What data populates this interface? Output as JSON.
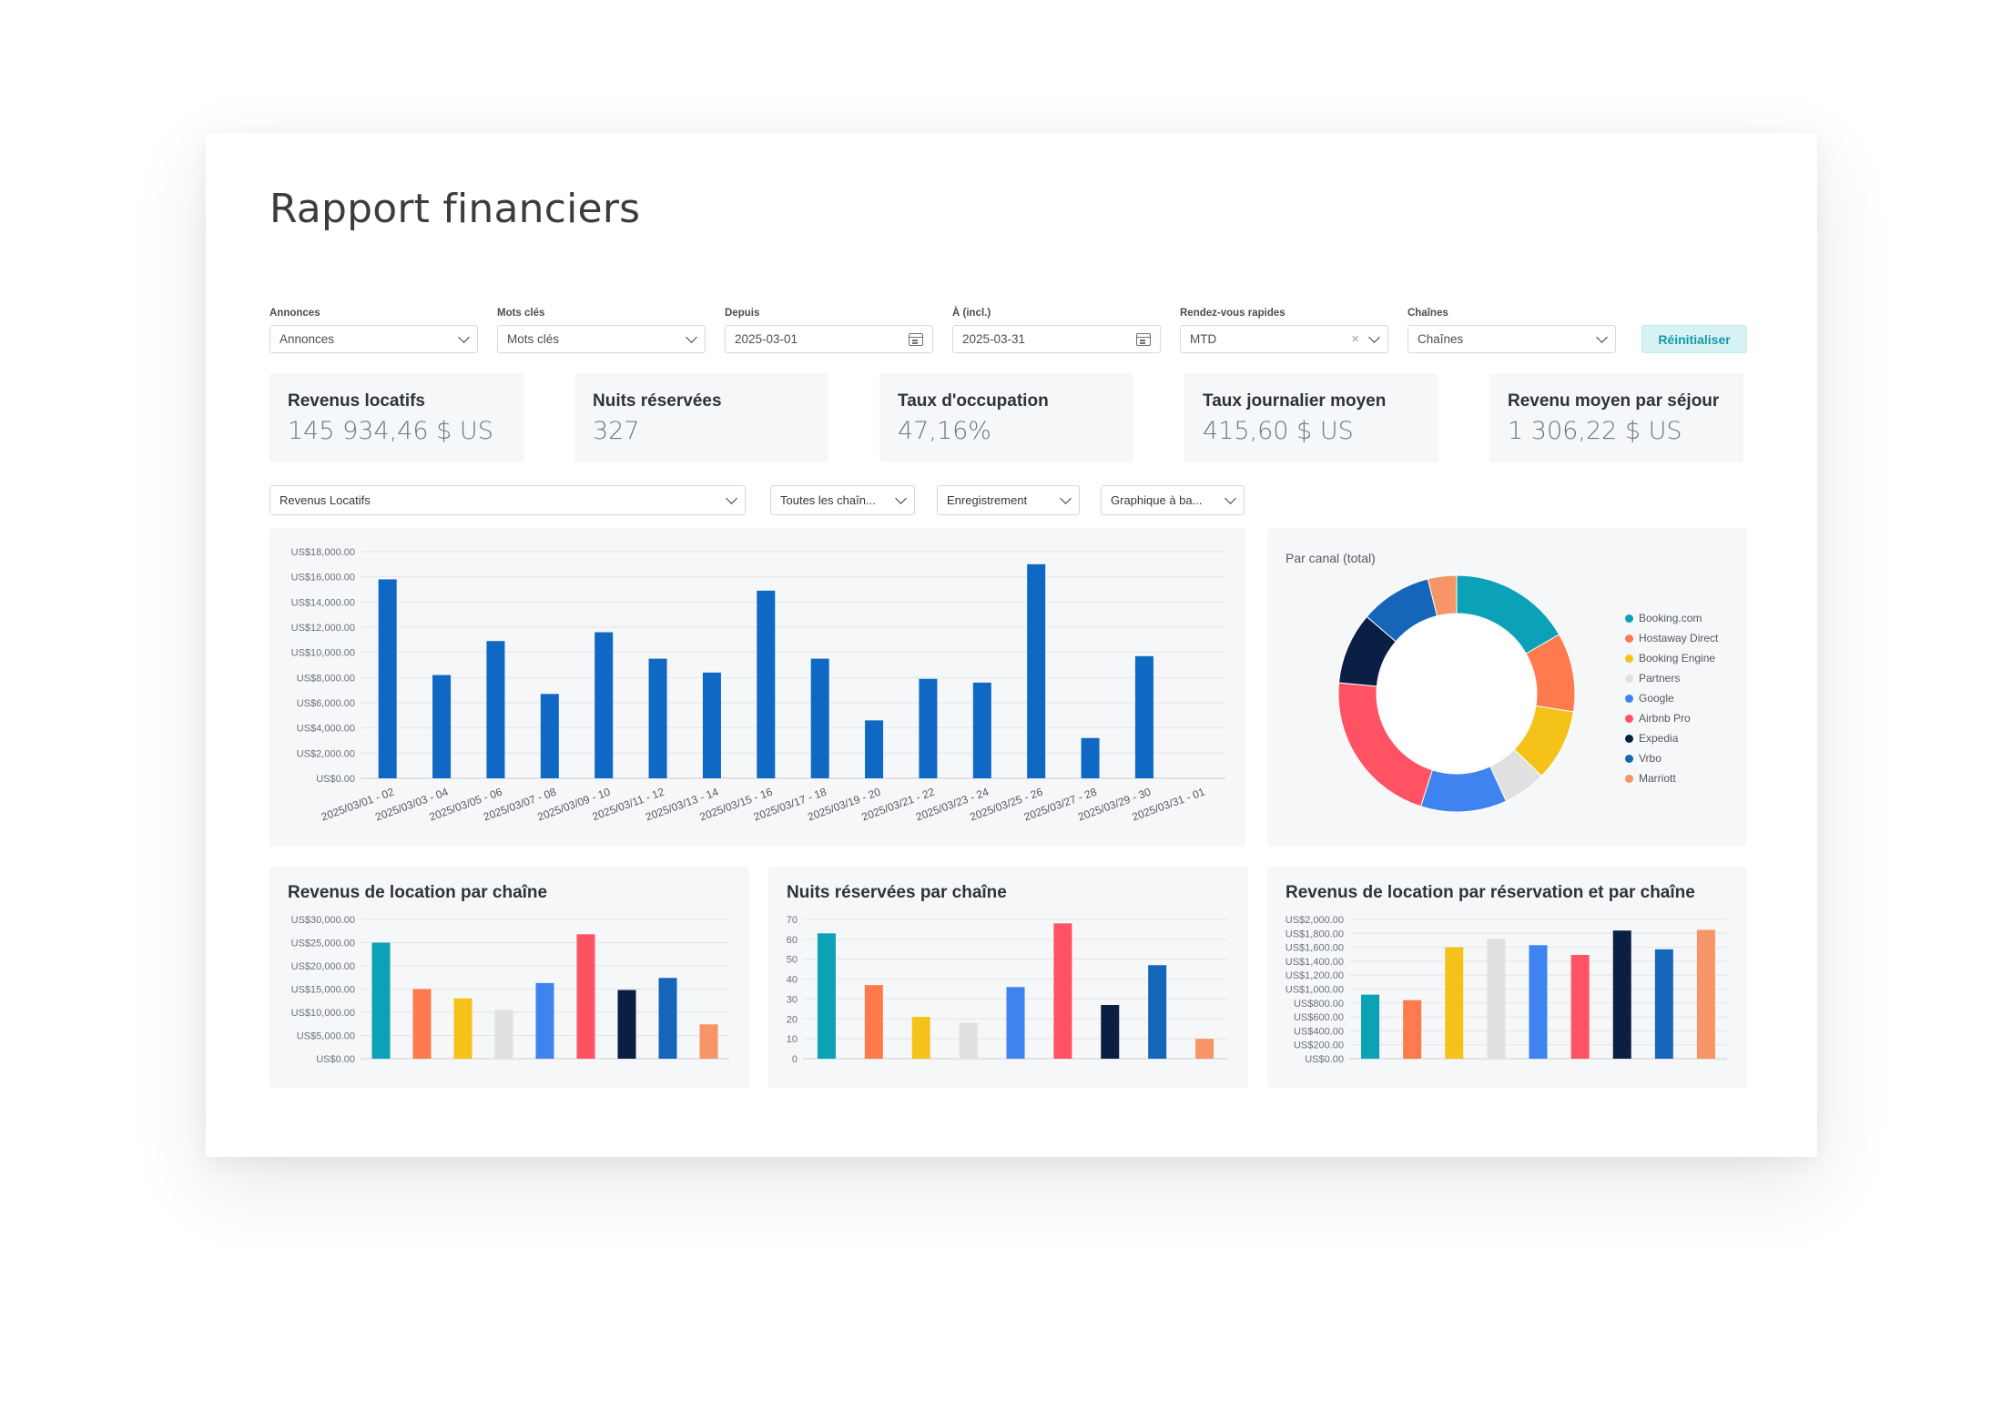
{
  "page": {
    "title": "Rapport financiers"
  },
  "filters": {
    "annonces": {
      "label": "Annonces",
      "value": "Annonces"
    },
    "mots_cles": {
      "label": "Mots clés",
      "value": "Mots clés"
    },
    "depuis": {
      "label": "Depuis",
      "value": "2025-03-01"
    },
    "a_incl": {
      "label": "À (incl.)",
      "value": "2025-03-31"
    },
    "rendez_vous": {
      "label": "Rendez-vous rapides",
      "value": "MTD",
      "clear_glyph": "×"
    },
    "chaines": {
      "label": "Chaînes",
      "value": "Chaînes"
    },
    "reset_label": "Réinitialiser"
  },
  "kpis": [
    {
      "label": "Revenus locatifs",
      "value": "145 934,46 $ US"
    },
    {
      "label": "Nuits réservées",
      "value": "327"
    },
    {
      "label": "Taux d'occupation",
      "value": "47,16%"
    },
    {
      "label": "Taux journalier moyen",
      "value": "415,60 $ US"
    },
    {
      "label": "Revenu moyen par séjour",
      "value": "1 306,22 $ US"
    }
  ],
  "selectors": {
    "metric": "Revenus Locatifs",
    "channels": "Toutes les chaîn...",
    "grouping": "Enregistrement",
    "chart_type": "Graphique à ba..."
  },
  "colors": {
    "main_bar": "#0f68c4",
    "accent": "#139aa6",
    "channels": [
      "#0ba2b8",
      "#ff7a4d",
      "#f5c21a",
      "#e0e0e0",
      "#3f83f0",
      "#ff5363",
      "#0b1f45",
      "#1565b8",
      "#f79566"
    ]
  },
  "chart_data": [
    {
      "type": "bar",
      "title": "",
      "categories": [
        "2025/03/01 - 02",
        "2025/03/03 - 04",
        "2025/03/05 - 06",
        "2025/03/07 - 08",
        "2025/03/09 - 10",
        "2025/03/11 - 12",
        "2025/03/13 - 14",
        "2025/03/15 - 16",
        "2025/03/17 - 18",
        "2025/03/19 - 20",
        "2025/03/21 - 22",
        "2025/03/23 - 24",
        "2025/03/25 - 26",
        "2025/03/27 - 28",
        "2025/03/29 - 30",
        "2025/03/31 - 01"
      ],
      "values": [
        15800,
        8200,
        10900,
        6700,
        11600,
        9500,
        8400,
        14900,
        9500,
        4600,
        7900,
        7600,
        17000,
        3200,
        9700,
        0
      ],
      "ylim": [
        0,
        18000
      ],
      "yticks": [
        "US$0.00",
        "US$2,000.00",
        "US$4,000.00",
        "US$6,000.00",
        "US$8,000.00",
        "US$10,000.00",
        "US$12,000.00",
        "US$14,000.00",
        "US$16,000.00",
        "US$18,000.00"
      ],
      "grid": true
    },
    {
      "type": "pie",
      "title": "Par canal (total)",
      "categories": [
        "Booking.com",
        "Hostaway Direct",
        "Booking Engine",
        "Partners",
        "Google",
        "Airbnb Pro",
        "Expedia",
        "Vrbo",
        "Marriott"
      ],
      "values": [
        17,
        11,
        10,
        6,
        12,
        22,
        10,
        10,
        4
      ],
      "legend": "right"
    },
    {
      "type": "bar",
      "title": "Revenus de location par chaîne",
      "categories": [
        "Booking.com",
        "Hostaway Direct",
        "Booking Engine",
        "Partners",
        "Google",
        "Airbnb Pro",
        "Expedia",
        "Vrbo",
        "Marriott"
      ],
      "values": [
        25000,
        15000,
        13000,
        10500,
        16300,
        26800,
        14800,
        17400,
        7400
      ],
      "ylim": [
        0,
        30000
      ],
      "yticks": [
        "US$0.00",
        "US$5,000.00",
        "US$10,000.00",
        "US$15,000.00",
        "US$20,000.00",
        "US$25,000.00",
        "US$30,000.00"
      ],
      "grid": true
    },
    {
      "type": "bar",
      "title": "Nuits réservées par chaîne",
      "categories": [
        "Booking.com",
        "Hostaway Direct",
        "Booking Engine",
        "Partners",
        "Google",
        "Airbnb Pro",
        "Expedia",
        "Vrbo",
        "Marriott"
      ],
      "values": [
        63,
        37,
        21,
        18,
        36,
        68,
        27,
        47,
        10
      ],
      "ylim": [
        0,
        70
      ],
      "yticks": [
        "0",
        "10",
        "20",
        "30",
        "40",
        "50",
        "60",
        "70"
      ],
      "grid": true
    },
    {
      "type": "bar",
      "title": "Revenus de location par réservation et par chaîne",
      "categories": [
        "Booking.com",
        "Hostaway Direct",
        "Booking Engine",
        "Partners",
        "Google",
        "Airbnb Pro",
        "Expedia",
        "Vrbo",
        "Marriott"
      ],
      "values": [
        920,
        840,
        1600,
        1720,
        1630,
        1490,
        1840,
        1570,
        1850
      ],
      "ylim": [
        0,
        2000
      ],
      "yticks": [
        "US$0.00",
        "US$200.00",
        "US$400.00",
        "US$600.00",
        "US$800.00",
        "US$1,000.00",
        "US$1,200.00",
        "US$1,400.00",
        "US$1,600.00",
        "US$1,800.00",
        "US$2,000.00"
      ],
      "grid": true
    }
  ]
}
